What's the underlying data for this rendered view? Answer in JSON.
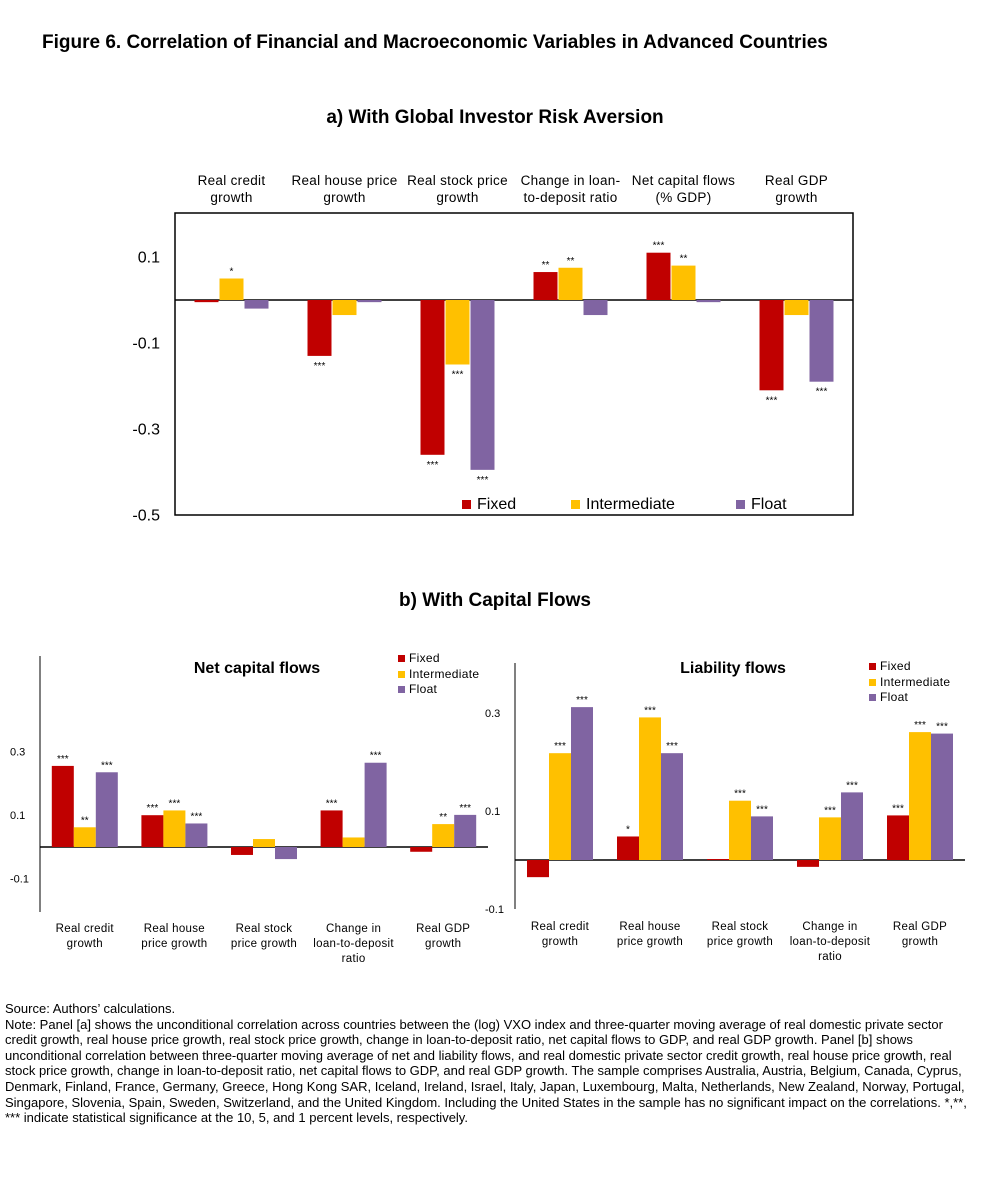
{
  "figure_title": "Figure 6. Correlation of Financial and Macroeconomic Variables in Advanced Countries",
  "colors": {
    "Fixed": "#c00000",
    "Intermediate": "#ffc000",
    "Float": "#8064a2"
  },
  "panel_a": {
    "title": "a)   With Global Investor Risk Aversion"
  },
  "panel_b": {
    "title": "b)   With Capital Flows"
  },
  "chart_data": [
    {
      "type": "bar",
      "title": "",
      "categories": [
        [
          "Real credit",
          "growth"
        ],
        [
          "Real house price",
          "growth"
        ],
        [
          "Real stock price",
          "growth"
        ],
        [
          "Change in loan-",
          "to-deposit ratio"
        ],
        [
          "Net capital flows",
          "(% GDP)"
        ],
        [
          "Real GDP",
          "growth"
        ]
      ],
      "series": [
        {
          "name": "Fixed",
          "values": [
            -0.005,
            -0.13,
            -0.36,
            0.065,
            0.11,
            -0.21
          ],
          "sig": [
            "",
            "***",
            "***",
            "**",
            "***",
            "***"
          ]
        },
        {
          "name": "Intermediate",
          "values": [
            0.05,
            -0.035,
            -0.15,
            0.075,
            0.08,
            -0.035
          ],
          "sig": [
            "*",
            "",
            "***",
            "**",
            "**",
            ""
          ]
        },
        {
          "name": "Float",
          "values": [
            -0.02,
            -0.005,
            -0.395,
            -0.035,
            -0.005,
            -0.19
          ],
          "sig": [
            "",
            "",
            "***",
            "",
            "",
            "***"
          ]
        }
      ],
      "yticks": [
        0.1,
        -0.1,
        -0.3,
        -0.5
      ],
      "ylim": [
        -0.5,
        0.2
      ],
      "legend": "bottom-right"
    },
    {
      "type": "bar",
      "title": "Net capital flows",
      "categories": [
        [
          "Real credit",
          "growth"
        ],
        [
          "Real house",
          "price growth"
        ],
        [
          "Real stock",
          "price growth"
        ],
        [
          "Change in",
          "loan-to-deposit",
          "ratio"
        ],
        [
          "Real GDP",
          "growth"
        ]
      ],
      "series": [
        {
          "name": "Fixed",
          "values": [
            0.255,
            0.1,
            -0.025,
            0.115,
            -0.015
          ],
          "sig": [
            "***",
            "***",
            "",
            "***",
            ""
          ]
        },
        {
          "name": "Intermediate",
          "values": [
            0.062,
            0.115,
            0.025,
            0.03,
            0.072
          ],
          "sig": [
            "**",
            "***",
            "",
            "",
            "**"
          ]
        },
        {
          "name": "Float",
          "values": [
            0.235,
            0.074,
            -0.038,
            0.265,
            0.101
          ],
          "sig": [
            "***",
            "***",
            "",
            "***",
            "***"
          ]
        }
      ],
      "yticks": [
        0.3,
        0.1,
        -0.1
      ],
      "ylim": [
        -0.1,
        0.3
      ],
      "legend": "top-right"
    },
    {
      "type": "bar",
      "title": "Liability flows",
      "categories": [
        [
          "Real credit",
          "growth"
        ],
        [
          "Real house",
          "price growth"
        ],
        [
          "Real stock",
          "price growth"
        ],
        [
          "Change in",
          "loan-to-deposit",
          "ratio"
        ],
        [
          "Real GDP",
          "growth"
        ]
      ],
      "series": [
        {
          "name": "Fixed",
          "values": [
            -0.035,
            0.048,
            0.002,
            -0.014,
            0.091
          ],
          "sig": [
            "",
            "*",
            "",
            "",
            "***"
          ]
        },
        {
          "name": "Intermediate",
          "values": [
            0.218,
            0.291,
            0.121,
            0.087,
            0.261
          ],
          "sig": [
            "***",
            "***",
            "***",
            "***",
            "***"
          ]
        },
        {
          "name": "Float",
          "values": [
            0.312,
            0.218,
            0.089,
            0.138,
            0.258
          ],
          "sig": [
            "***",
            "***",
            "***",
            "***",
            "***"
          ]
        }
      ],
      "yticks": [
        0.3,
        0.1,
        -0.1
      ],
      "ylim": [
        -0.1,
        0.35
      ],
      "legend": "top-right"
    }
  ],
  "notes": {
    "source": "Source: Authors’ calculations.",
    "note": "Note: Panel [a] shows the unconditional correlation across countries between the (log) VXO index and three-quarter moving average of real domestic private sector credit growth, real house price growth, real stock price growth, change in loan-to-deposit ratio, net capital flows to GDP, and real GDP growth. Panel [b] shows unconditional correlation between three-quarter moving average of net and liability flows, and real domestic private sector credit growth, real house price growth, real stock price growth, change in loan-to-deposit ratio, net capital flows to GDP, and real GDP growth. The sample comprises Australia, Austria, Belgium, Canada, Cyprus, Denmark, Finland, France, Germany, Greece, Hong Kong SAR, Iceland, Ireland, Israel, Italy, Japan, Luxembourg, Malta, Netherlands, New Zealand, Norway, Portugal, Singapore, Slovenia, Spain, Sweden, Switzerland, and the United Kingdom. Including the United States in the sample has no significant impact on the correlations.  *,**, *** indicate statistical significance at the 10, 5, and 1 percent levels, respectively."
  }
}
